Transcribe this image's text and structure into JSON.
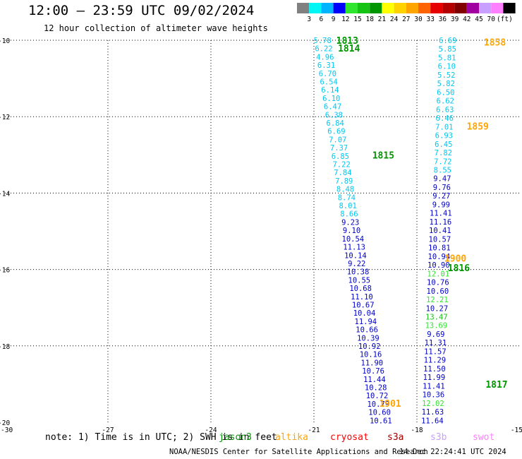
{
  "header": {
    "title": "12:00 — 23:59 UTC 09/02/2024",
    "subtitle": "12 hour collection of altimeter wave heights"
  },
  "colorbar": {
    "unit": "(ft)",
    "levels": [
      "3",
      "6",
      "9",
      "12",
      "15",
      "18",
      "21",
      "24",
      "27",
      "30",
      "33",
      "36",
      "39",
      "42",
      "45",
      "70"
    ],
    "colors": [
      "#808080",
      "#00f5f5",
      "#00b4ff",
      "#0000ff",
      "#2ee62e",
      "#14c314",
      "#009600",
      "#ffff00",
      "#ffd200",
      "#ffa500",
      "#ff6400",
      "#e60000",
      "#b40000",
      "#800000",
      "#a000a0",
      "#c8a0ff",
      "#ff80ff",
      "#000000"
    ]
  },
  "note": {
    "text": "note: 1) Time is in UTC; 2) SWH is in feet",
    "jason3": "jason3",
    "altika": "altika",
    "cryosat": "cryosat",
    "s3a": "s3a",
    "s3b": "s3b",
    "swot": "swot",
    "jason3_color": "#009600",
    "altika_color": "#ffa500",
    "cryosat_color": "#ff0000",
    "s3a_color": "#a00000",
    "s3b_color": "#c8a0ff",
    "swot_color": "#ff80ff"
  },
  "footer": {
    "credit": "NOAA/NESDIS Center for Satellite Applications and Research",
    "timestamp": "14 Dec 22:24:41 UTC 2024"
  },
  "chart_data": {
    "type": "scatter",
    "xlim": [
      -30,
      -15
    ],
    "ylim": [
      -20,
      -10
    ],
    "x_ticks": [
      "-30",
      "-27",
      "-24",
      "-21",
      "-18",
      "-15"
    ],
    "y_ticks": [
      "-10",
      "-12",
      "-14",
      "-16",
      "-18",
      "-20"
    ],
    "grid": true,
    "track_a": {
      "x_start": -20.75,
      "y_start": -10.0,
      "x_end": -19.05,
      "y_end": -19.95,
      "values": [
        "5.78",
        "6.22",
        "4.96",
        "6.31",
        "6.70",
        "6.54",
        "6.14",
        "6.10",
        "6.47",
        "6.38",
        "6.84",
        "6.69",
        "7.07",
        "7.37",
        "6.85",
        "7.22",
        "7.84",
        "7.89",
        "8.48",
        "8.74",
        "8.01",
        "8.66",
        "9.23",
        "9.10",
        "10.54",
        "11.13",
        "10.14",
        "9.22",
        "10.38",
        "10.55",
        "10.68",
        "11.10",
        "10.67",
        "10.04",
        "11.94",
        "10.66",
        "10.39",
        "10.92",
        "10.16",
        "11.90",
        "10.76",
        "11.44",
        "10.28",
        "10.72",
        "10.79",
        "10.60",
        "10.61"
      ],
      "colors": [
        "#00c8f0",
        "#00c8f0",
        "#00c8f0",
        "#00c8f0",
        "#00c8f0",
        "#00c8f0",
        "#00c8f0",
        "#00c8f0",
        "#00c8f0",
        "#00c8f0",
        "#00c8f0",
        "#00c8f0",
        "#00c8f0",
        "#00c8f0",
        "#00c8f0",
        "#00c8f0",
        "#00c8f0",
        "#00c8f0",
        "#00c8f0",
        "#00c8f0",
        "#00c8f0",
        "#00c8f0",
        "#0000c8",
        "#0000c8",
        "#0000c8",
        "#0000c8",
        "#0000c8",
        "#0000c8",
        "#0000c8",
        "#0000c8",
        "#0000c8",
        "#0000c8",
        "#0000c8",
        "#0000c8",
        "#0000c8",
        "#0000c8",
        "#0000c8",
        "#0000c8",
        "#0000c8",
        "#0000c8",
        "#0000c8",
        "#0000c8",
        "#0000c8",
        "#0000c8",
        "#0000c8",
        "#0000c8",
        "#0000c8"
      ]
    },
    "track_b": {
      "x_start": -17.1,
      "y_start": -10.0,
      "x_end": -17.55,
      "y_end": -19.95,
      "values": [
        "6.69",
        "5.85",
        "5.81",
        "6.10",
        "5.52",
        "5.82",
        "6.50",
        "6.62",
        "6.63",
        "6.46",
        "7.01",
        "6.93",
        "6.45",
        "7.82",
        "7.72",
        "8.55",
        "9.47",
        "9.76",
        "9.27",
        "9.99",
        "11.41",
        "11.16",
        "10.41",
        "10.57",
        "10.81",
        "10.94",
        "10.90",
        "12.01",
        "10.76",
        "10.60",
        "12.21",
        "10.27",
        "13.47",
        "13.69",
        "9.69",
        "11.31",
        "11.57",
        "11.29",
        "11.50",
        "11.99",
        "11.41",
        "10.36",
        "12.02",
        "11.63",
        "11.64"
      ],
      "colors": [
        "#00c8f0",
        "#00c8f0",
        "#00c8f0",
        "#00c8f0",
        "#00c8f0",
        "#00c8f0",
        "#00c8f0",
        "#00c8f0",
        "#00c8f0",
        "#00c8f0",
        "#00c8f0",
        "#00c8f0",
        "#00c8f0",
        "#00c8f0",
        "#00c8f0",
        "#00c8f0",
        "#0000c8",
        "#0000c8",
        "#0000c8",
        "#0000c8",
        "#0000c8",
        "#0000c8",
        "#0000c8",
        "#0000c8",
        "#0000c8",
        "#0000c8",
        "#0000c8",
        "#2ee62e",
        "#0000c8",
        "#0000c8",
        "#2ee62e",
        "#0000c8",
        "#14c314",
        "#2ee62e",
        "#0000c8",
        "#0000c8",
        "#0000c8",
        "#0000c8",
        "#0000c8",
        "#0000c8",
        "#0000c8",
        "#0000c8",
        "#2ee62e",
        "#0000c8",
        "#0000c8"
      ]
    },
    "time_labels": [
      {
        "text": "1813",
        "x": -20.35,
        "y": -10.0,
        "color": "#009600"
      },
      {
        "text": "1814",
        "x": -20.3,
        "y": -10.2,
        "color": "#009600"
      },
      {
        "text": "1815",
        "x": -19.3,
        "y": -13.0,
        "color": "#009600"
      },
      {
        "text": "1816",
        "x": -17.1,
        "y": -15.95,
        "color": "#009600"
      },
      {
        "text": "1817",
        "x": -16.0,
        "y": -19.0,
        "color": "#009600"
      },
      {
        "text": "1858",
        "x": -16.05,
        "y": -10.05,
        "color": "#ffa500"
      },
      {
        "text": "1859",
        "x": -16.55,
        "y": -12.25,
        "color": "#ffa500"
      },
      {
        "text": "1900",
        "x": -17.2,
        "y": -15.7,
        "color": "#ffa500"
      },
      {
        "text": "1901",
        "x": -19.1,
        "y": -19.5,
        "color": "#ffa500"
      }
    ]
  }
}
